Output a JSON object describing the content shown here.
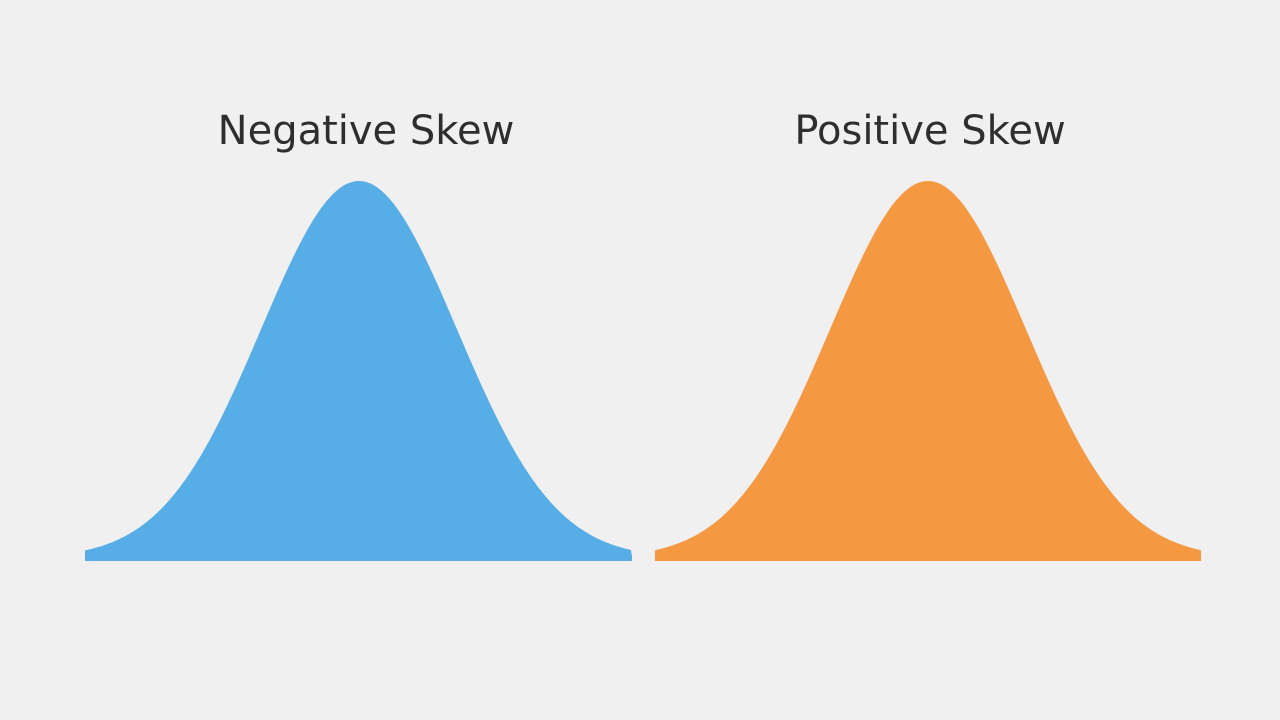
{
  "panels": [
    {
      "title": "Negative Skew"
    },
    {
      "title": "Positive Skew"
    }
  ]
}
